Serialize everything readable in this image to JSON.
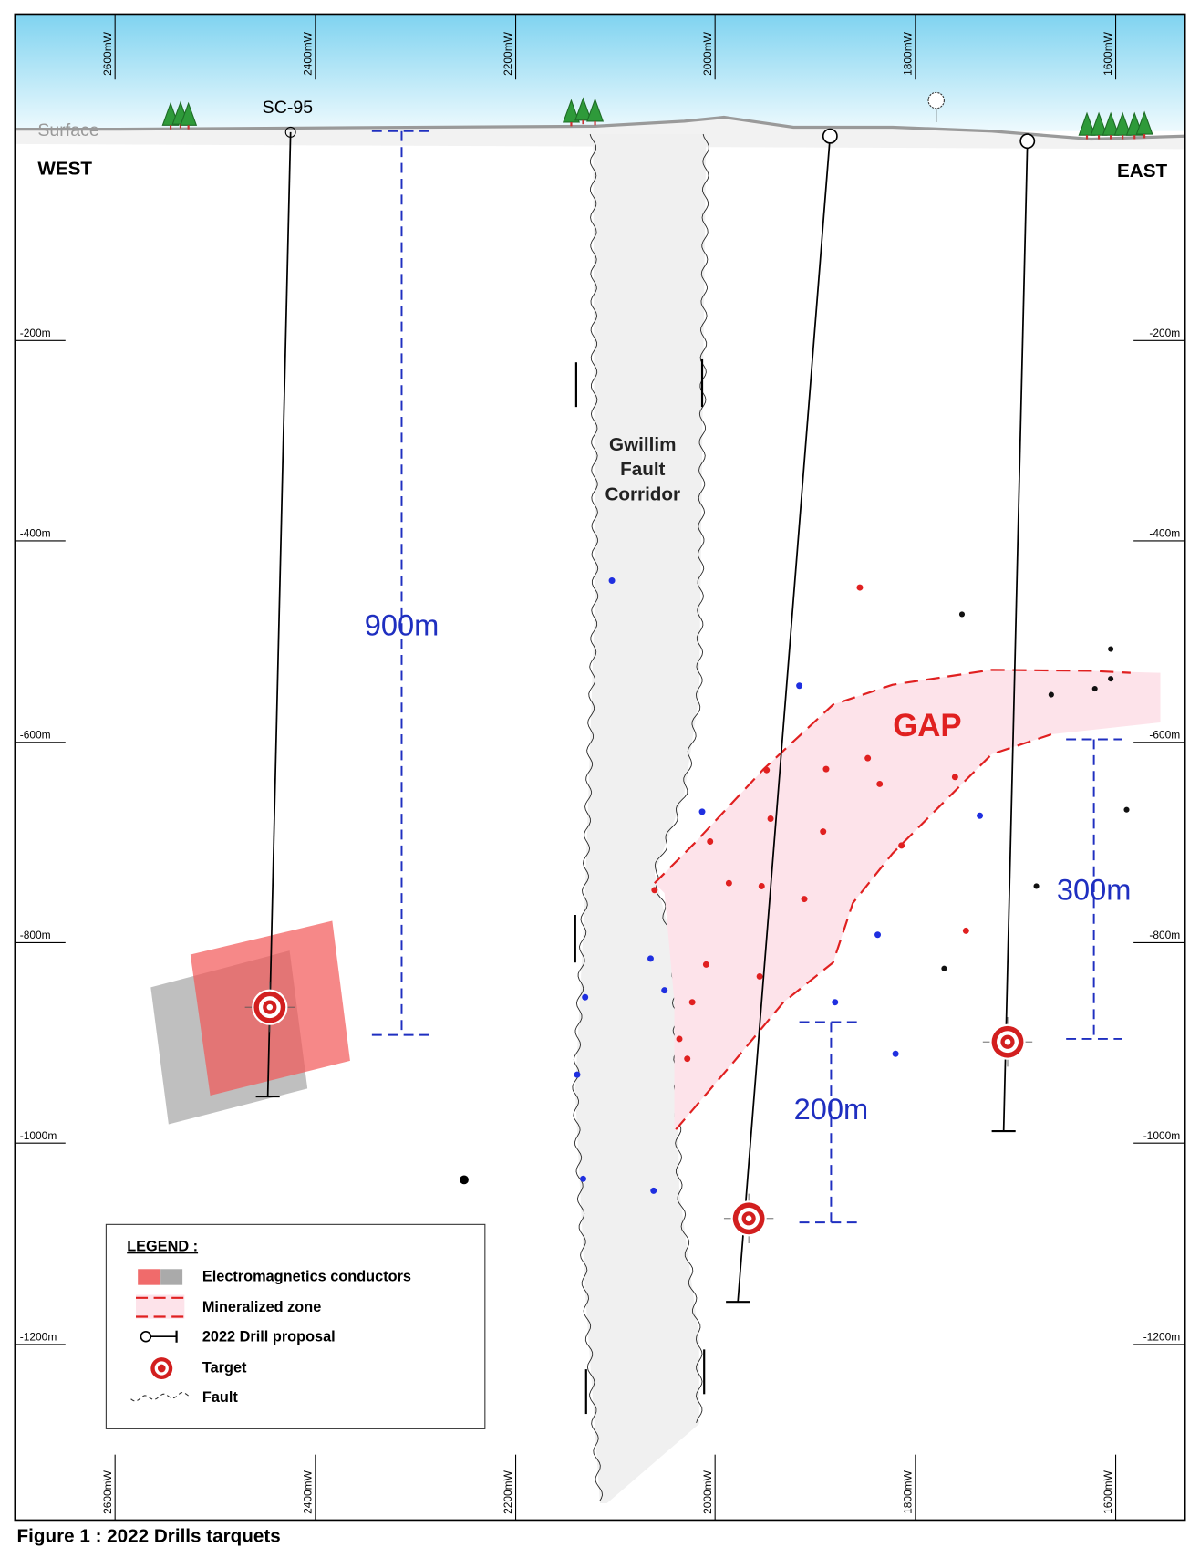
{
  "header": {
    "surface": "Surface",
    "west": "WEST",
    "east": "EAST",
    "drill_hole": "SC-95"
  },
  "eastings": [
    "2600mW",
    "2400mW",
    "2200mW",
    "2000mW",
    "1800mW",
    "1600mW"
  ],
  "depths": [
    "-200m",
    "-400m",
    "-600m",
    "-800m",
    "-1000m",
    "-1200m"
  ],
  "fault": {
    "label": [
      "Gwillim",
      "Fault",
      "Corridor"
    ]
  },
  "zone": {
    "label": "GAP"
  },
  "dimensions": [
    "900m",
    "300m",
    "200m"
  ],
  "legend": {
    "title": "LEGEND :",
    "items": [
      "Electromagnetics conductors",
      "Mineralized zone",
      "2022 Drill proposal",
      "Target",
      "Fault"
    ]
  },
  "caption": "Figure 1 : 2022 Drills tarquets"
}
